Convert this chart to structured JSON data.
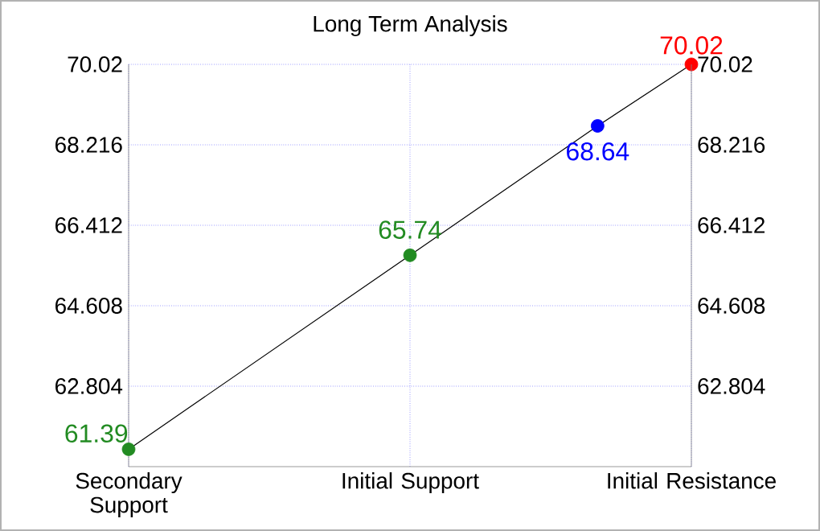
{
  "chart_data": {
    "type": "line",
    "title": "Long Term Analysis",
    "categories": [
      "Secondary Support",
      null,
      null,
      "Initial Support",
      null,
      null,
      "Initial Resistance"
    ],
    "ylim": [
      61.0,
      70.02
    ],
    "yticks": [
      62.804,
      64.608,
      66.412,
      68.216,
      70.02
    ],
    "y2lim": [
      61.0,
      70.02
    ],
    "y2ticks": [
      62.804,
      64.608,
      66.412,
      68.216,
      70.02
    ],
    "grid": true,
    "marker": "circle",
    "series": [
      {
        "color": "#000000",
        "line_style": "solid",
        "values": [
          61.39,
          null,
          null,
          65.74,
          null,
          68.64,
          70.02
        ],
        "colors": [
          "#228b22",
          null,
          null,
          "#228b22",
          null,
          "#0000ff",
          "#ff0000"
        ],
        "value_labels": [
          "61.39",
          null,
          null,
          "65.74",
          null,
          "68.64",
          "70.02"
        ]
      }
    ]
  }
}
